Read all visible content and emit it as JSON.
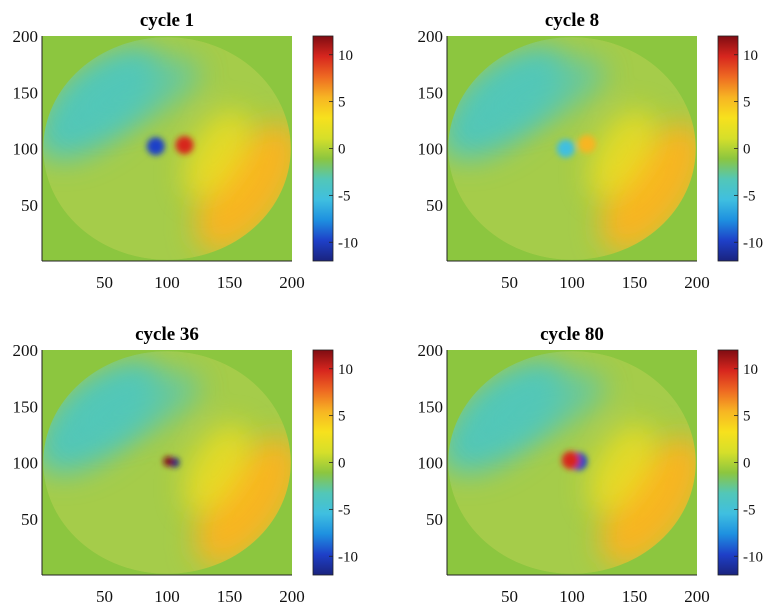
{
  "colors": {
    "background_field": "#8cc63f",
    "colormap": [
      "#1a237e",
      "#1e40c8",
      "#1e90e0",
      "#3fbfe0",
      "#52c7b8",
      "#8cc63f",
      "#d6df2a",
      "#f7e11d",
      "#f7b523",
      "#ee6a22",
      "#d7261e",
      "#7f0c12"
    ]
  },
  "chart_data": [
    {
      "type": "heatmap",
      "title": "cycle 1",
      "xlabel": "",
      "ylabel": "",
      "xlim": [
        0,
        200
      ],
      "ylim": [
        0,
        200
      ],
      "xticks": [
        50,
        100,
        150,
        200
      ],
      "yticks": [
        50,
        100,
        150,
        200
      ],
      "colorbar": {
        "range": [
          -12,
          12
        ],
        "ticks": [
          10,
          5,
          0,
          -5,
          -10
        ]
      },
      "features": [
        {
          "name": "cyan-lobe",
          "x": 45,
          "y": 140,
          "value": -4.2
        },
        {
          "name": "yellow-lobe",
          "x": 165,
          "y": 65,
          "value": 4.5
        },
        {
          "name": "core-negative",
          "x": 91,
          "y": 102,
          "value": -9
        },
        {
          "name": "core-positive",
          "x": 114,
          "y": 103,
          "value": 9
        }
      ]
    },
    {
      "type": "heatmap",
      "title": "cycle 8",
      "xlabel": "",
      "ylabel": "",
      "xlim": [
        0,
        200
      ],
      "ylim": [
        0,
        200
      ],
      "xticks": [
        50,
        100,
        150,
        200
      ],
      "yticks": [
        50,
        100,
        150,
        200
      ],
      "colorbar": {
        "range": [
          -12,
          12
        ],
        "ticks": [
          10,
          5,
          0,
          -5,
          -10
        ]
      },
      "features": [
        {
          "name": "cyan-lobe",
          "x": 45,
          "y": 140,
          "value": -4.2
        },
        {
          "name": "yellow-lobe",
          "x": 165,
          "y": 65,
          "value": 4.5
        },
        {
          "name": "core-negative",
          "x": 95,
          "y": 100,
          "value": -6
        },
        {
          "name": "core-positive",
          "x": 112,
          "y": 104,
          "value": 6
        }
      ]
    },
    {
      "type": "heatmap",
      "title": "cycle 36",
      "xlabel": "",
      "ylabel": "",
      "xlim": [
        0,
        200
      ],
      "ylim": [
        0,
        200
      ],
      "xticks": [
        50,
        100,
        150,
        200
      ],
      "yticks": [
        50,
        100,
        150,
        200
      ],
      "colorbar": {
        "range": [
          -12,
          12
        ],
        "ticks": [
          10,
          5,
          0,
          -5,
          -10
        ]
      },
      "features": [
        {
          "name": "cyan-lobe",
          "x": 45,
          "y": 140,
          "value": -4.2
        },
        {
          "name": "yellow-lobe",
          "x": 165,
          "y": 65,
          "value": 4.5
        },
        {
          "name": "core-negative",
          "x": 106,
          "y": 100,
          "value": -11
        },
        {
          "name": "core-positive",
          "x": 101,
          "y": 101,
          "value": 11
        }
      ]
    },
    {
      "type": "heatmap",
      "title": "cycle 80",
      "xlabel": "",
      "ylabel": "",
      "xlim": [
        0,
        200
      ],
      "ylim": [
        0,
        200
      ],
      "xticks": [
        50,
        100,
        150,
        200
      ],
      "yticks": [
        50,
        100,
        150,
        200
      ],
      "colorbar": {
        "range": [
          -12,
          12
        ],
        "ticks": [
          10,
          5,
          0,
          -5,
          -10
        ]
      },
      "features": [
        {
          "name": "cyan-lobe",
          "x": 45,
          "y": 140,
          "value": -4.2
        },
        {
          "name": "yellow-lobe",
          "x": 165,
          "y": 65,
          "value": 4.5
        },
        {
          "name": "core-negative",
          "x": 105,
          "y": 101,
          "value": -10
        },
        {
          "name": "core-positive",
          "x": 99,
          "y": 102,
          "value": 10
        }
      ]
    }
  ]
}
